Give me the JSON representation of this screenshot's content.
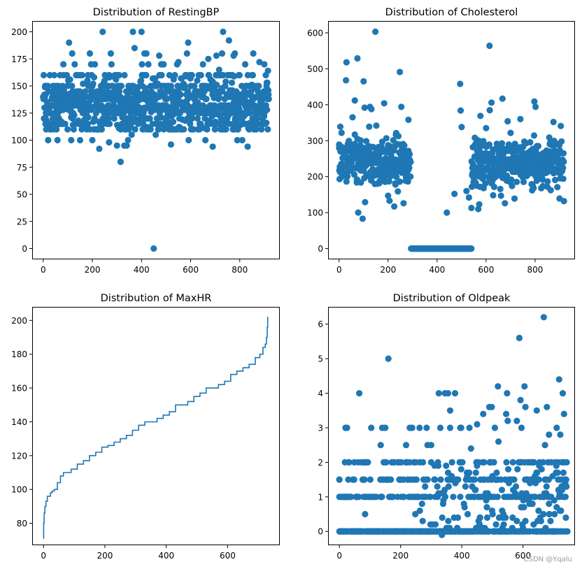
{
  "watermark": "CSDN @Yqalu",
  "colors": {
    "series": "#1f77b4",
    "axis": "#000000"
  },
  "chart_data": [
    {
      "id": "restingbp",
      "type": "scatter",
      "title": "Distribution of RestingBP",
      "xlabel": "",
      "ylabel": "",
      "xlim": [
        -45,
        963
      ],
      "ylim": [
        -10,
        210
      ],
      "xticks": [
        0,
        200,
        400,
        600,
        800
      ],
      "yticks": [
        0,
        25,
        50,
        75,
        100,
        125,
        150,
        175,
        200
      ],
      "grid": false,
      "bands": [
        110,
        115,
        120,
        125,
        128,
        130,
        132,
        135,
        138,
        140,
        142,
        145,
        150,
        160
      ],
      "n_points": 918,
      "points": [
        [
          0,
          140
        ],
        [
          2,
          160
        ],
        [
          5,
          130
        ],
        [
          8,
          150
        ],
        [
          10,
          120
        ],
        [
          12,
          110
        ],
        [
          20,
          100
        ],
        [
          58,
          100
        ],
        [
          82,
          170
        ],
        [
          105,
          190
        ],
        [
          118,
          180
        ],
        [
          128,
          170
        ],
        [
          150,
          100
        ],
        [
          114,
          100
        ],
        [
          190,
          180
        ],
        [
          195,
          170
        ],
        [
          200,
          100
        ],
        [
          210,
          170
        ],
        [
          228,
          92
        ],
        [
          242,
          200
        ],
        [
          268,
          98
        ],
        [
          275,
          180
        ],
        [
          278,
          170
        ],
        [
          300,
          95
        ],
        [
          315,
          80
        ],
        [
          330,
          95
        ],
        [
          340,
          95
        ],
        [
          345,
          100
        ],
        [
          360,
          105
        ],
        [
          365,
          200
        ],
        [
          372,
          185
        ],
        [
          400,
          200
        ],
        [
          402,
          170
        ],
        [
          412,
          180
        ],
        [
          420,
          180
        ],
        [
          428,
          170
        ],
        [
          450,
          0
        ],
        [
          458,
          105
        ],
        [
          472,
          178
        ],
        [
          480,
          170
        ],
        [
          490,
          170
        ],
        [
          520,
          96
        ],
        [
          545,
          170
        ],
        [
          550,
          172
        ],
        [
          585,
          180
        ],
        [
          590,
          190
        ],
        [
          592,
          100
        ],
        [
          650,
          170
        ],
        [
          660,
          100
        ],
        [
          672,
          175
        ],
        [
          690,
          94
        ],
        [
          705,
          178
        ],
        [
          716,
          165
        ],
        [
          732,
          200
        ],
        [
          728,
          180
        ],
        [
          756,
          192
        ],
        [
          775,
          178
        ],
        [
          780,
          180
        ],
        [
          790,
          100
        ],
        [
          810,
          100
        ],
        [
          822,
          170
        ],
        [
          832,
          94
        ],
        [
          855,
          180
        ],
        [
          880,
          172
        ],
        [
          900,
          170
        ],
        [
          915,
          164
        ],
        [
          918,
          138
        ]
      ]
    },
    {
      "id": "cholesterol",
      "type": "scatter",
      "title": "Distribution of Cholesterol",
      "xlabel": "",
      "ylabel": "",
      "xlim": [
        -45,
        963
      ],
      "ylim": [
        -30,
        633
      ],
      "xticks": [
        0,
        200,
        400,
        600,
        800
      ],
      "yticks": [
        0,
        100,
        200,
        300,
        400,
        500,
        600
      ],
      "grid": false,
      "zero_run": [
        293,
        540
      ],
      "n_points": 918,
      "points": [
        [
          0,
          289
        ],
        [
          5,
          339
        ],
        [
          30,
          518
        ],
        [
          28,
          468
        ],
        [
          55,
          365
        ],
        [
          64,
          412
        ],
        [
          75,
          529
        ],
        [
          78,
          100
        ],
        [
          96,
          83
        ],
        [
          100,
          465
        ],
        [
          104,
          392
        ],
        [
          106,
          129
        ],
        [
          123,
          339
        ],
        [
          126,
          394
        ],
        [
          132,
          388
        ],
        [
          148,
          603
        ],
        [
          152,
          342
        ],
        [
          184,
          404
        ],
        [
          200,
          147
        ],
        [
          206,
          133
        ],
        [
          225,
          117
        ],
        [
          248,
          491
        ],
        [
          254,
          394
        ],
        [
          263,
          126
        ],
        [
          283,
          358
        ],
        [
          440,
          100
        ],
        [
          471,
          152
        ],
        [
          494,
          458
        ],
        [
          496,
          384
        ],
        [
          500,
          338
        ],
        [
          520,
          160
        ],
        [
          530,
          142
        ],
        [
          540,
          113
        ],
        [
          568,
          110
        ],
        [
          572,
          123
        ],
        [
          577,
          369
        ],
        [
          600,
          335
        ],
        [
          615,
          385
        ],
        [
          614,
          564
        ],
        [
          622,
          406
        ],
        [
          629,
          148
        ],
        [
          661,
          147
        ],
        [
          667,
          417
        ],
        [
          677,
          126
        ],
        [
          688,
          354
        ],
        [
          716,
          139
        ],
        [
          740,
          360
        ],
        [
          797,
          409
        ],
        [
          802,
          394
        ],
        [
          875,
          352
        ],
        [
          905,
          341
        ],
        [
          918,
          132
        ],
        [
          916,
          265
        ]
      ]
    },
    {
      "id": "maxhr",
      "type": "line",
      "title": "Distribution of MaxHR",
      "xlabel": "",
      "ylabel": "",
      "xlim": [
        -37,
        770
      ],
      "ylim": [
        67,
        208
      ],
      "xticks": [
        0,
        200,
        400,
        600
      ],
      "yticks": [
        80,
        100,
        120,
        140,
        160,
        180,
        200
      ],
      "grid": false,
      "x": [
        0,
        1,
        3,
        6,
        10,
        15,
        20,
        25,
        30,
        40,
        50,
        60,
        70,
        80,
        100,
        120,
        140,
        160,
        180,
        200,
        220,
        240,
        260,
        280,
        300,
        320,
        340,
        360,
        380,
        400,
        420,
        440,
        460,
        480,
        500,
        520,
        540,
        560,
        580,
        600,
        620,
        640,
        660,
        680,
        700,
        710,
        720,
        725,
        728,
        730,
        731
      ],
      "y": [
        71,
        80,
        86,
        90,
        93,
        96,
        96,
        98,
        99,
        100,
        104,
        108,
        110,
        110,
        112,
        115,
        117,
        120,
        122,
        125,
        126,
        128,
        130,
        132,
        135,
        138,
        140,
        140,
        142,
        144,
        146,
        150,
        150,
        152,
        155,
        157,
        160,
        160,
        162,
        164,
        168,
        170,
        172,
        174,
        178,
        180,
        184,
        186,
        190,
        196,
        202
      ]
    },
    {
      "id": "oldpeak",
      "type": "scatter",
      "title": "Distribution of Oldpeak",
      "xlabel": "",
      "ylabel": "",
      "xlim": [
        -37,
        770
      ],
      "ylim": [
        -0.4,
        6.5
      ],
      "xticks": [
        0,
        200,
        400,
        600
      ],
      "yticks": [
        0,
        1,
        2,
        3,
        4,
        5,
        6
      ],
      "grid": false,
      "n_points": 746,
      "points": [
        [
          0,
          0
        ],
        [
          0,
          1
        ],
        [
          0,
          1.5
        ],
        [
          20,
          3
        ],
        [
          25,
          3
        ],
        [
          18,
          2
        ],
        [
          65,
          4
        ],
        [
          84,
          0.5
        ],
        [
          104,
          3
        ],
        [
          135,
          2.5
        ],
        [
          140,
          3
        ],
        [
          150,
          3
        ],
        [
          160,
          5
        ],
        [
          168,
          1.5
        ],
        [
          210,
          1.5
        ],
        [
          218,
          2.5
        ],
        [
          230,
          3
        ],
        [
          238,
          3
        ],
        [
          248,
          0.5
        ],
        [
          262,
          3
        ],
        [
          270,
          0.8
        ],
        [
          285,
          3
        ],
        [
          288,
          2.5
        ],
        [
          300,
          2.5
        ],
        [
          325,
          4
        ],
        [
          330,
          3
        ],
        [
          335,
          -0.1
        ],
        [
          345,
          4
        ],
        [
          355,
          4
        ],
        [
          362,
          3.5
        ],
        [
          362,
          3
        ],
        [
          378,
          4
        ],
        [
          395,
          3
        ],
        [
          398,
          3
        ],
        [
          425,
          3
        ],
        [
          430,
          2.4
        ],
        [
          450,
          3.1
        ],
        [
          470,
          3.4
        ],
        [
          490,
          3.6
        ],
        [
          498,
          3.6
        ],
        [
          508,
          3
        ],
        [
          518,
          4.2
        ],
        [
          520,
          2.6
        ],
        [
          548,
          4
        ],
        [
          545,
          3.4
        ],
        [
          550,
          3.2
        ],
        [
          580,
          3.2
        ],
        [
          588,
          5.6
        ],
        [
          592,
          3.8
        ],
        [
          595,
          3
        ],
        [
          605,
          4.2
        ],
        [
          608,
          3.6
        ],
        [
          645,
          3.5
        ],
        [
          668,
          6.2
        ],
        [
          672,
          2.5
        ],
        [
          678,
          3.6
        ],
        [
          685,
          2.8
        ],
        [
          710,
          3
        ],
        [
          715,
          2
        ],
        [
          718,
          4.4
        ],
        [
          722,
          2.8
        ],
        [
          730,
          4
        ],
        [
          734,
          3.4
        ]
      ]
    }
  ]
}
